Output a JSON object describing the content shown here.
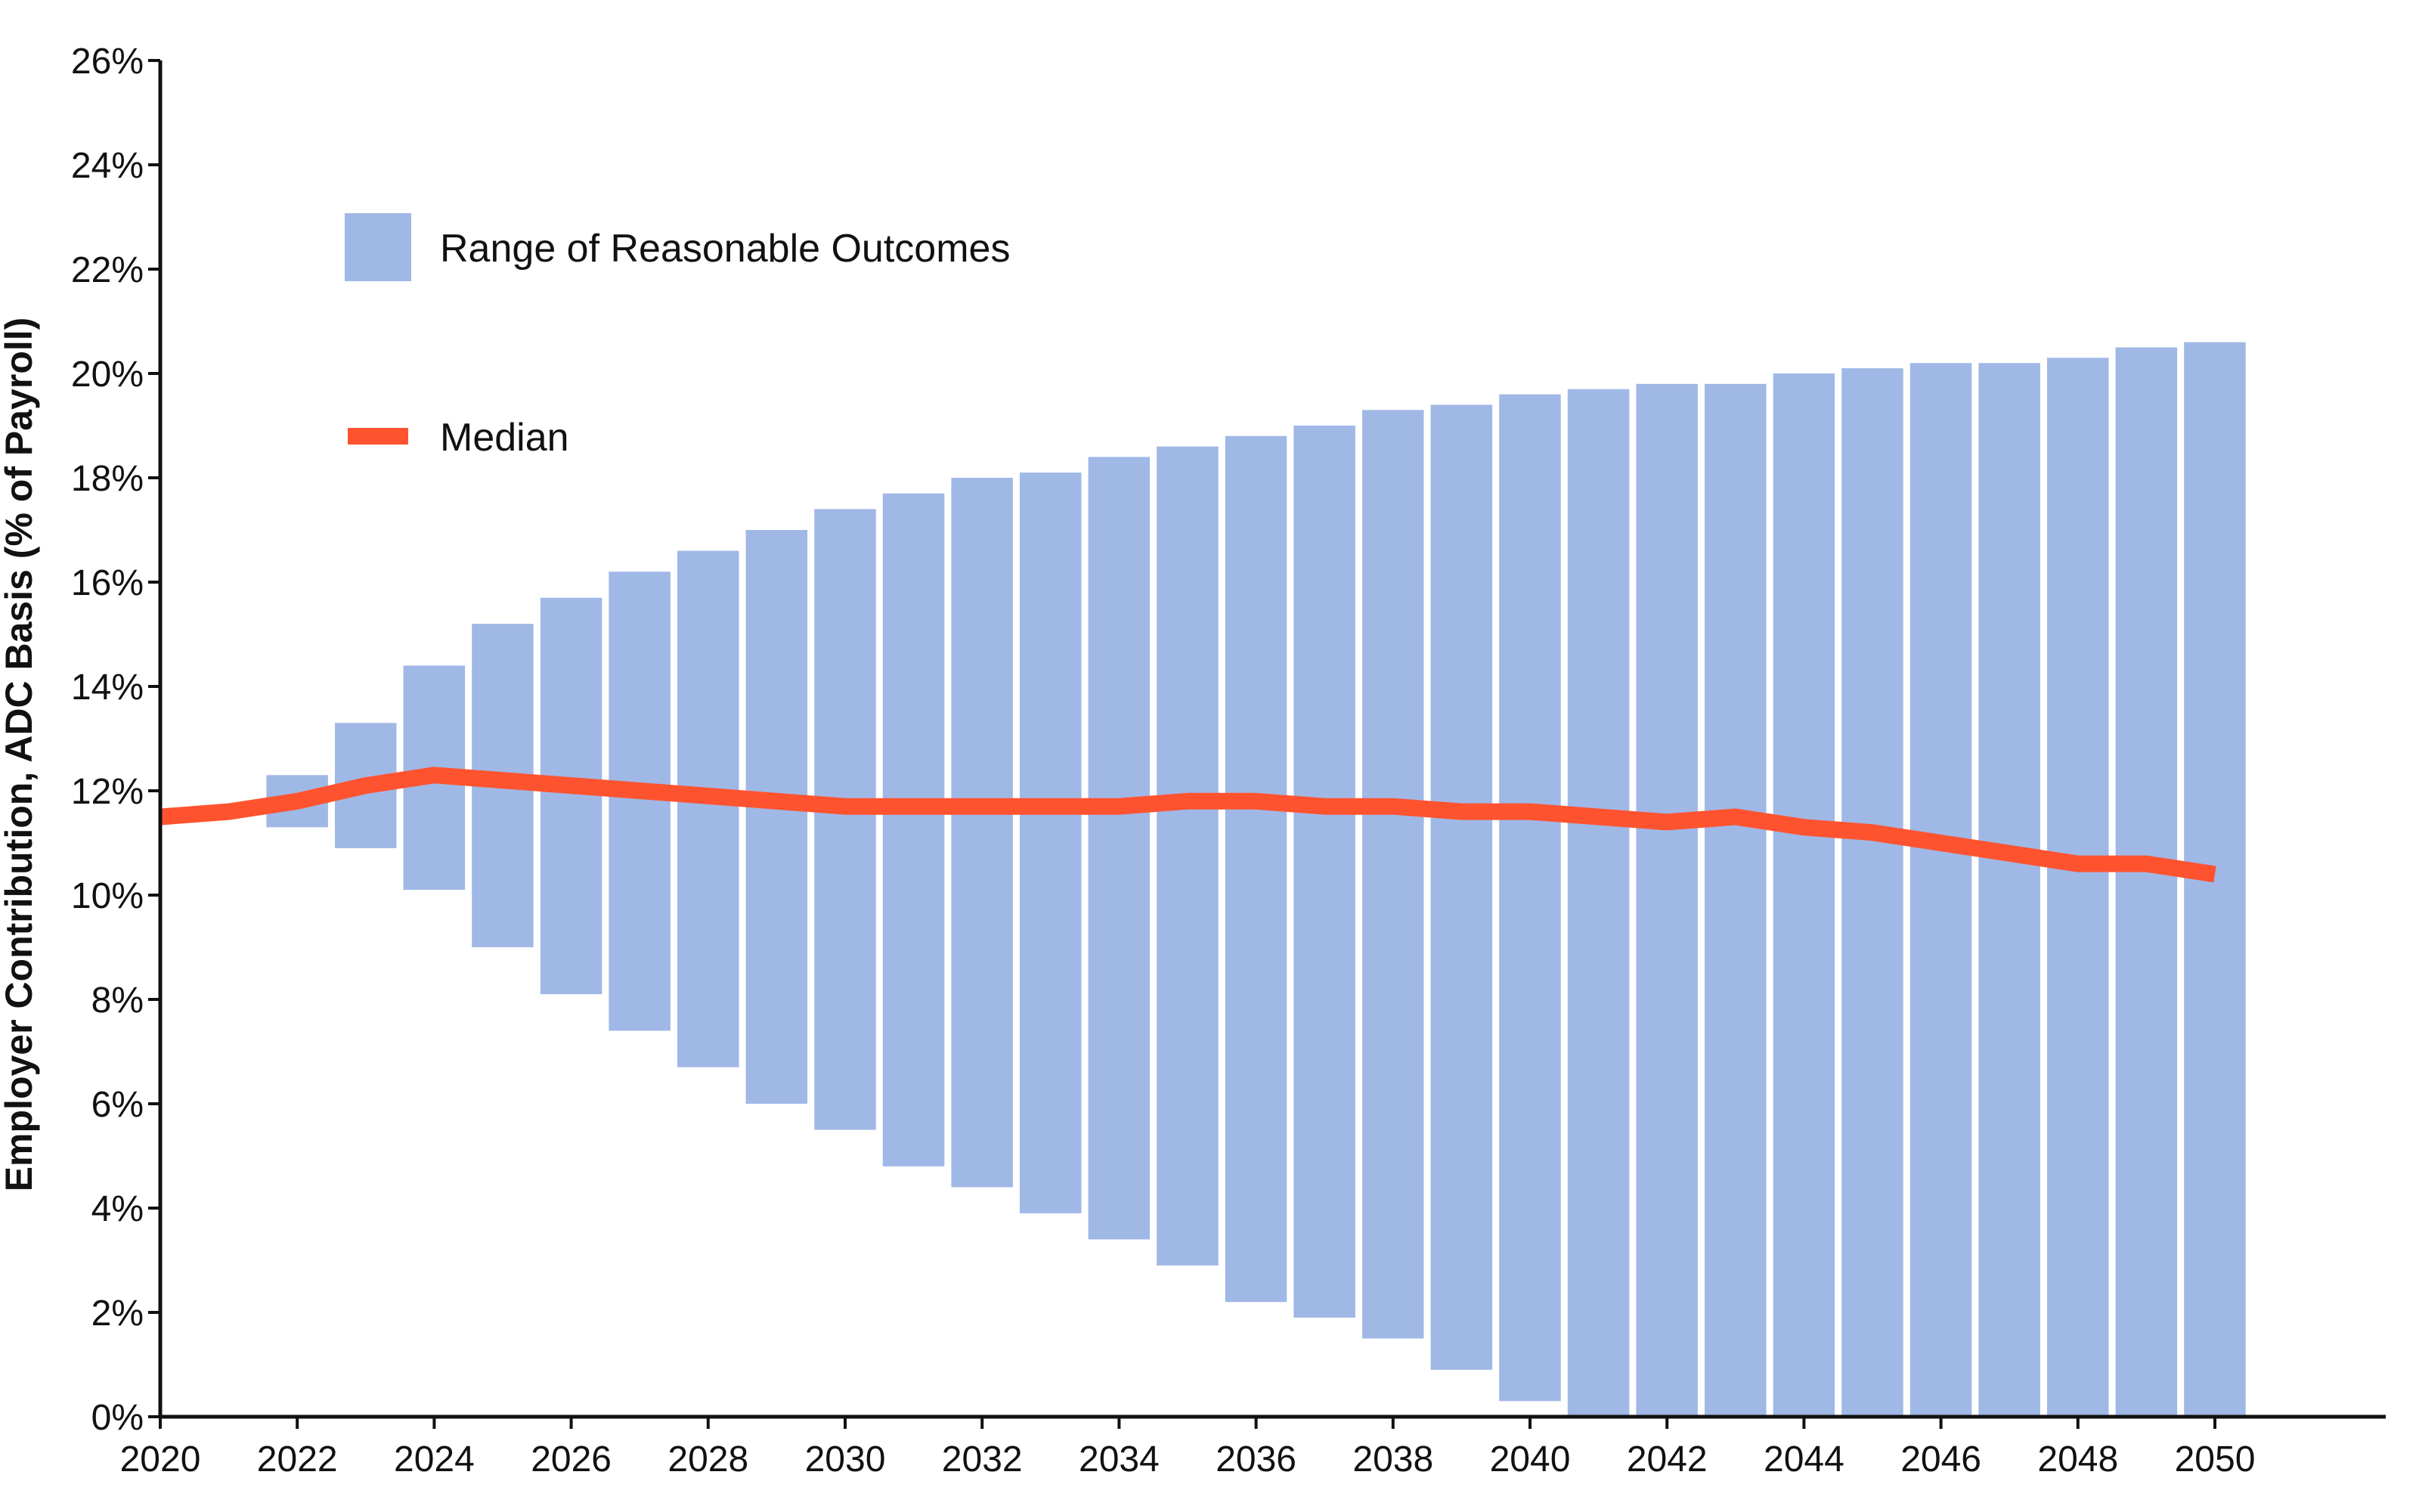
{
  "chart_data": {
    "type": "bar",
    "title": "",
    "xlabel": "",
    "ylabel": "Employer Contribution, ADC Basis (% of Payroll)",
    "xlim": [
      2020,
      2050
    ],
    "ylim": [
      0,
      26
    ],
    "x_ticks": [
      "2020",
      "2022",
      "2024",
      "2026",
      "2028",
      "2030",
      "2032",
      "2034",
      "2036",
      "2038",
      "2040",
      "2042",
      "2044",
      "2046",
      "2048",
      "2050"
    ],
    "y_ticks": [
      "0%",
      "2%",
      "4%",
      "6%",
      "8%",
      "10%",
      "12%",
      "14%",
      "16%",
      "18%",
      "20%",
      "22%",
      "24%",
      "26%"
    ],
    "grid": false,
    "legend_position": "top-left",
    "colors": {
      "range": "#a0b8e6",
      "median": "#ff5330",
      "axis": "#111111"
    },
    "series": [
      {
        "name": "Range of Reasonable Outcomes",
        "type": "floating-bar",
        "x": [
          2022,
          2023,
          2024,
          2025,
          2026,
          2027,
          2028,
          2029,
          2030,
          2031,
          2032,
          2033,
          2034,
          2035,
          2036,
          2037,
          2038,
          2039,
          2040,
          2041,
          2042,
          2043,
          2044,
          2045,
          2046,
          2047,
          2048,
          2049,
          2050
        ],
        "low": [
          11.3,
          10.9,
          10.1,
          9.0,
          8.1,
          7.4,
          6.7,
          6.0,
          5.5,
          4.8,
          4.4,
          3.9,
          3.4,
          2.9,
          2.2,
          1.9,
          1.5,
          0.9,
          0.3,
          0,
          0,
          0,
          0,
          0,
          0,
          0,
          0,
          0,
          0
        ],
        "high": [
          12.3,
          13.3,
          14.4,
          15.2,
          15.7,
          16.2,
          16.6,
          17.0,
          17.4,
          17.7,
          18.0,
          18.1,
          18.4,
          18.6,
          18.8,
          19.0,
          19.3,
          19.4,
          19.6,
          19.7,
          19.8,
          19.8,
          20.0,
          20.1,
          20.2,
          20.2,
          20.3,
          20.5,
          20.6
        ]
      },
      {
        "name": "Median",
        "type": "line",
        "x": [
          2020,
          2021,
          2022,
          2023,
          2024,
          2025,
          2026,
          2027,
          2028,
          2029,
          2030,
          2031,
          2032,
          2033,
          2034,
          2035,
          2036,
          2037,
          2038,
          2039,
          2040,
          2041,
          2042,
          2043,
          2044,
          2045,
          2046,
          2047,
          2048,
          2049,
          2050
        ],
        "values": [
          11.5,
          11.6,
          11.8,
          12.1,
          12.3,
          12.2,
          12.1,
          12.0,
          11.9,
          11.8,
          11.7,
          11.7,
          11.7,
          11.7,
          11.7,
          11.8,
          11.8,
          11.7,
          11.7,
          11.6,
          11.6,
          11.5,
          11.4,
          11.5,
          11.3,
          11.2,
          11.0,
          10.8,
          10.6,
          10.6,
          10.4
        ]
      }
    ]
  }
}
